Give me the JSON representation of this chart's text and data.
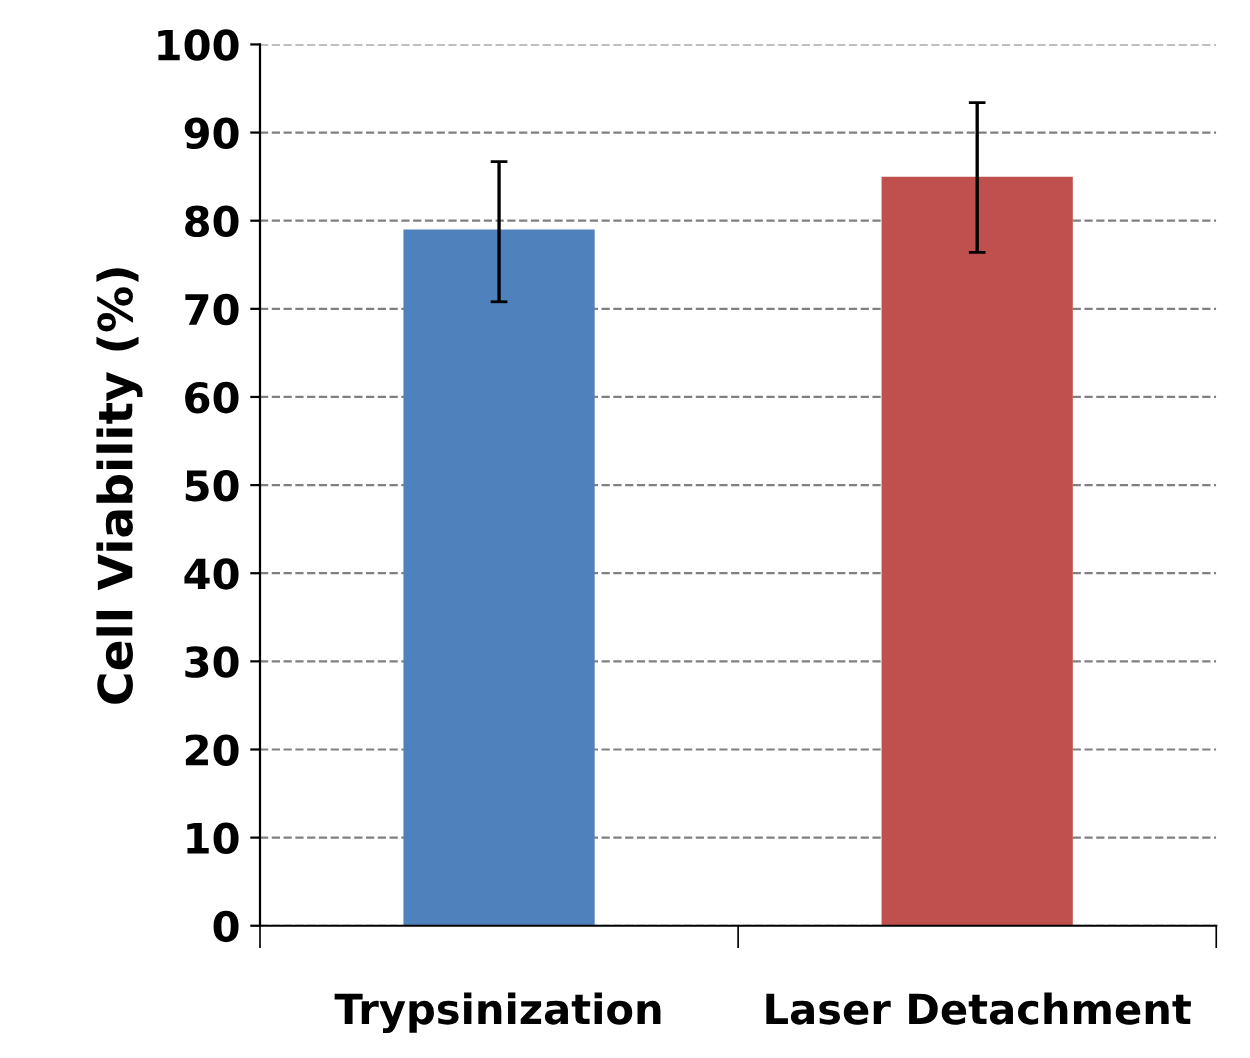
{
  "chart_data": {
    "type": "bar",
    "ylabel": "Cell Viability (%)",
    "categories": [
      "Trypsinization",
      "Laser Detachment"
    ],
    "values": [
      79.0,
      85.0
    ],
    "colors": [
      "#4f81bd",
      "#c0504d"
    ],
    "errors": [
      [
        70.8,
        86.7
      ],
      [
        76.4,
        93.4
      ]
    ],
    "ylim": [
      0,
      100
    ],
    "yticks": [
      0,
      10,
      20,
      30,
      40,
      50,
      60,
      70,
      80,
      90,
      100
    ],
    "grid": "y",
    "line_style": "dashed"
  }
}
